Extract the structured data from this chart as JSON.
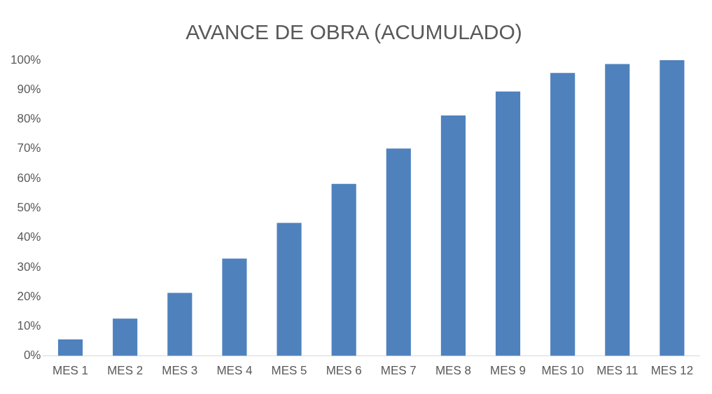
{
  "chart_data": {
    "type": "bar",
    "title": "AVANCE DE OBRA (ACUMULADO)",
    "categories": [
      "MES 1",
      "MES 2",
      "MES 3",
      "MES 4",
      "MES 5",
      "MES 6",
      "MES 7",
      "MES 8",
      "MES 9",
      "MES 10",
      "MES 11",
      "MES 12"
    ],
    "values": [
      5.6,
      12.6,
      21.3,
      32.9,
      45,
      58.2,
      70.1,
      81.3,
      89.4,
      95.7,
      98.7,
      100
    ],
    "color": "#4f81bd",
    "ylim": [
      0,
      100
    ],
    "yticks": [
      {
        "value": 0,
        "label": "0%"
      },
      {
        "value": 10,
        "label": "10%"
      },
      {
        "value": 20,
        "label": "20%"
      },
      {
        "value": 30,
        "label": "30%"
      },
      {
        "value": 40,
        "label": "40%"
      },
      {
        "value": 50,
        "label": "50%"
      },
      {
        "value": 60,
        "label": "60%"
      },
      {
        "value": 70,
        "label": "70%"
      },
      {
        "value": 80,
        "label": "80%"
      },
      {
        "value": 90,
        "label": "90%"
      },
      {
        "value": 100,
        "label": "100%"
      }
    ],
    "grid": false,
    "legend": false
  }
}
